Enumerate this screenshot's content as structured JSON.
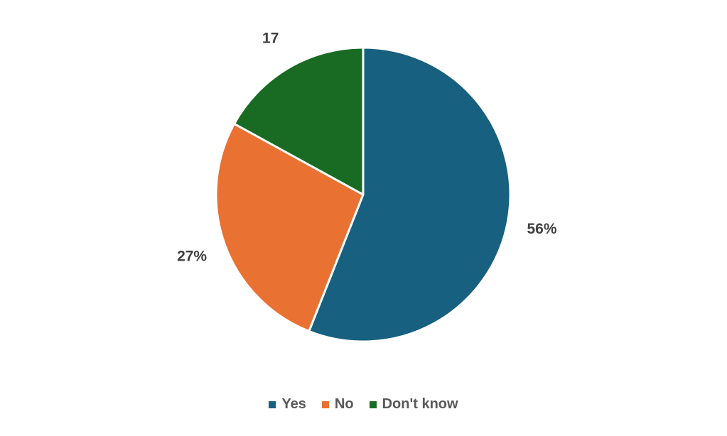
{
  "chart_data": {
    "type": "pie",
    "title": "",
    "slices": [
      {
        "name": "Yes",
        "value": 56,
        "label": "56%",
        "color": "#17607f"
      },
      {
        "name": "No",
        "value": 27,
        "label": "27%",
        "color": "#e97132"
      },
      {
        "name": "Don't know",
        "value": 17,
        "label": "17",
        "color": "#196b24"
      }
    ],
    "legend": {
      "placement": "bottom"
    },
    "start_angle_deg": 0,
    "direction": "clockwise"
  }
}
